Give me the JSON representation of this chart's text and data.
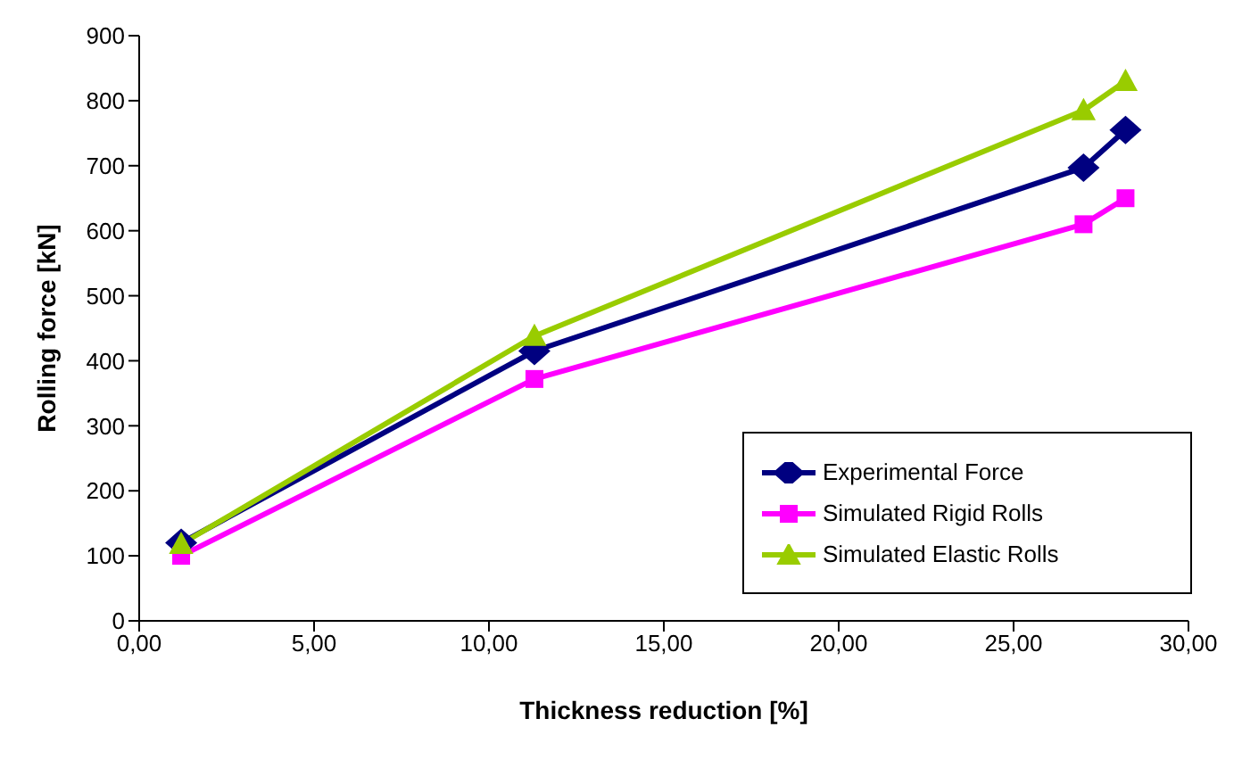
{
  "chart_data": {
    "type": "line",
    "xlabel": "Thickness reduction [%]",
    "ylabel": "Rolling force [kN]",
    "x": [
      1.2,
      11.3,
      27.0,
      28.2
    ],
    "series": [
      {
        "name": "Experimental Force",
        "color": "#000080",
        "marker": "diamond",
        "values": [
          120,
          415,
          697,
          755
        ]
      },
      {
        "name": "Simulated Rigid Rolls",
        "color": "#ff00ff",
        "marker": "square",
        "values": [
          100,
          372,
          610,
          650
        ]
      },
      {
        "name": "Simulated Elastic Rolls",
        "color": "#99cc00",
        "marker": "triangle",
        "values": [
          118,
          438,
          785,
          830
        ]
      }
    ],
    "xlim": [
      0,
      30
    ],
    "xticks": [
      {
        "value": 0,
        "label": "0,00"
      },
      {
        "value": 5,
        "label": "5,00"
      },
      {
        "value": 10,
        "label": "10,00"
      },
      {
        "value": 15,
        "label": "15,00"
      },
      {
        "value": 20,
        "label": "20,00"
      },
      {
        "value": 25,
        "label": "25,00"
      },
      {
        "value": 30,
        "label": "30,00"
      }
    ],
    "ylim": [
      0,
      900
    ],
    "yticks": [
      0,
      100,
      200,
      300,
      400,
      500,
      600,
      700,
      800,
      900
    ],
    "grid": false,
    "legend": "bottom right",
    "line_style": "solid"
  }
}
